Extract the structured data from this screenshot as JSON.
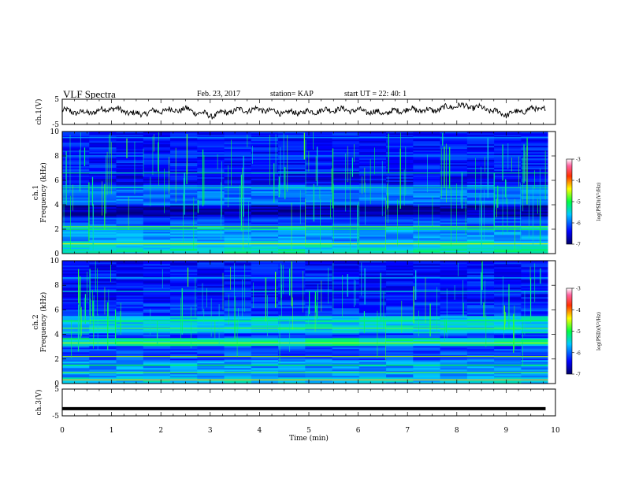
{
  "header": {
    "title": "VLF Spectra",
    "date": "Feb. 23, 2017",
    "station": "station= KAP",
    "start_ut": "start  UT =   22: 40: 1"
  },
  "chart_data": [
    {
      "type": "line",
      "panel": "ch1-waveform",
      "ylabel": "ch.1(V)",
      "ylim": [
        -5,
        5
      ],
      "yticks": [
        "5",
        "-5"
      ],
      "xlim": [
        0,
        10
      ],
      "description_values": "noisy waveform oscillating roughly between -2.5 and 3 V over 0–9.8 min",
      "x": [
        0,
        0.5,
        1,
        1.5,
        2,
        2.5,
        3,
        3.5,
        4,
        4.5,
        5,
        5.5,
        6,
        6.5,
        7,
        7.5,
        8,
        8.5,
        9,
        9.5,
        9.8
      ],
      "values": [
        0.5,
        -0.5,
        1.5,
        -1,
        0.5,
        1,
        -1.5,
        0.5,
        1,
        -0.5,
        0,
        1,
        0.5,
        -0.5,
        1,
        0.5,
        2.5,
        1.5,
        -1,
        1,
        1.5
      ]
    },
    {
      "type": "heatmap",
      "panel": "ch1-spectrogram",
      "ylabel": "ch.1 Frequency (kHz)",
      "ylim": [
        0,
        10
      ],
      "yticks": [
        "0",
        "2",
        "4",
        "6",
        "8",
        "10"
      ],
      "xlim": [
        0,
        10
      ],
      "colorbar": {
        "label": "log(PSD)(V²/Hz)",
        "range": [
          -7,
          -3
        ],
        "ticks": [
          "-3",
          "-4",
          "-5",
          "-6",
          "-7"
        ]
      }
    },
    {
      "type": "heatmap",
      "panel": "ch2-spectrogram",
      "ylabel": "ch.2 Frequency (kHz)",
      "ylim": [
        0,
        10
      ],
      "yticks": [
        "0",
        "2",
        "4",
        "6",
        "8",
        "10"
      ],
      "xlim": [
        0,
        10
      ],
      "colorbar": {
        "label": "log(PSD)(V²/Hz)",
        "range": [
          -7,
          -3
        ],
        "ticks": [
          "-3",
          "-4",
          "-5",
          "-6",
          "-7"
        ]
      }
    },
    {
      "type": "line",
      "panel": "ch3-waveform",
      "ylabel": "ch.3(V)",
      "ylim": [
        -5,
        5
      ],
      "yticks": [
        "5",
        "-5"
      ],
      "xlim": [
        0,
        10
      ],
      "x": [
        0,
        9.8
      ],
      "values": [
        -2.3,
        -2.3
      ]
    }
  ],
  "xaxis": {
    "label": "Time (min)",
    "ticks": [
      "0",
      "1",
      "2",
      "3",
      "4",
      "5",
      "6",
      "7",
      "8",
      "9",
      "10"
    ]
  }
}
